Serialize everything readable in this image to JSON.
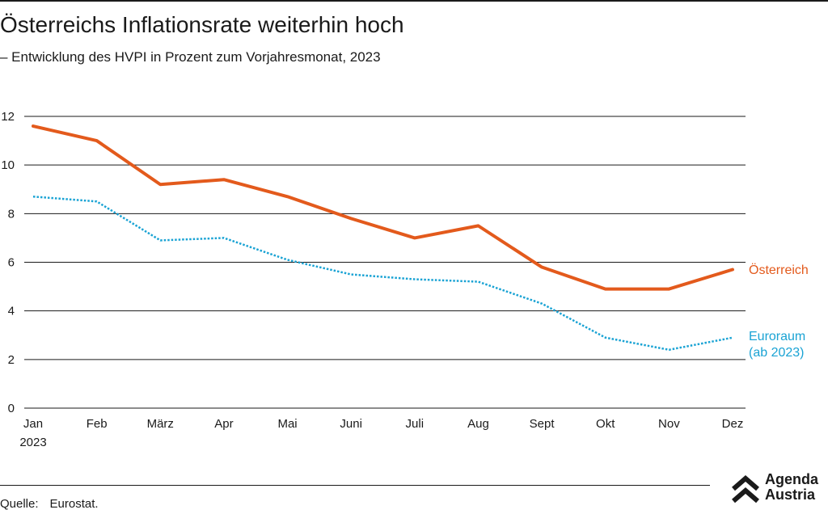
{
  "header": {
    "title": "Österreichs Inflationsrate weiterhin hoch",
    "subtitle": "– Entwicklung des HVPI in Prozent zum Vorjahresmonat, 2023"
  },
  "chart_data": {
    "type": "line",
    "title": "Österreichs Inflationsrate weiterhin hoch",
    "subtitle": "– Entwicklung des HVPI in Prozent zum Vorjahresmonat, 2023",
    "categories": [
      "Jan",
      "Feb",
      "März",
      "Apr",
      "Mai",
      "Juni",
      "Juli",
      "Aug",
      "Sept",
      "Okt",
      "Nov",
      "Dez"
    ],
    "year_label": "2023",
    "ylim": [
      0,
      12
    ],
    "yticks": [
      0,
      2,
      4,
      6,
      8,
      10,
      12
    ],
    "grid": true,
    "legend": "inline-right",
    "series": [
      {
        "name": "Österreich",
        "label_lines": [
          "Österreich"
        ],
        "color": "#e35a1c",
        "style": "solid",
        "values": [
          11.6,
          11.0,
          9.2,
          9.4,
          8.7,
          7.8,
          7.0,
          7.5,
          5.8,
          4.9,
          4.9,
          5.7
        ]
      },
      {
        "name": "Euroraum (ab 2023)",
        "label_lines": [
          "Euroraum",
          "(ab 2023)"
        ],
        "color": "#1aa3d4",
        "style": "dotted",
        "values": [
          8.7,
          8.5,
          6.9,
          7.0,
          6.1,
          5.5,
          5.3,
          5.2,
          4.3,
          2.9,
          2.4,
          2.9
        ]
      }
    ]
  },
  "footer": {
    "source_label": "Quelle:",
    "source_value": "Eurostat.",
    "logo_line1": "Agenda",
    "logo_line2": "Austria",
    "logo_icon": "double-chevron-up-icon"
  }
}
